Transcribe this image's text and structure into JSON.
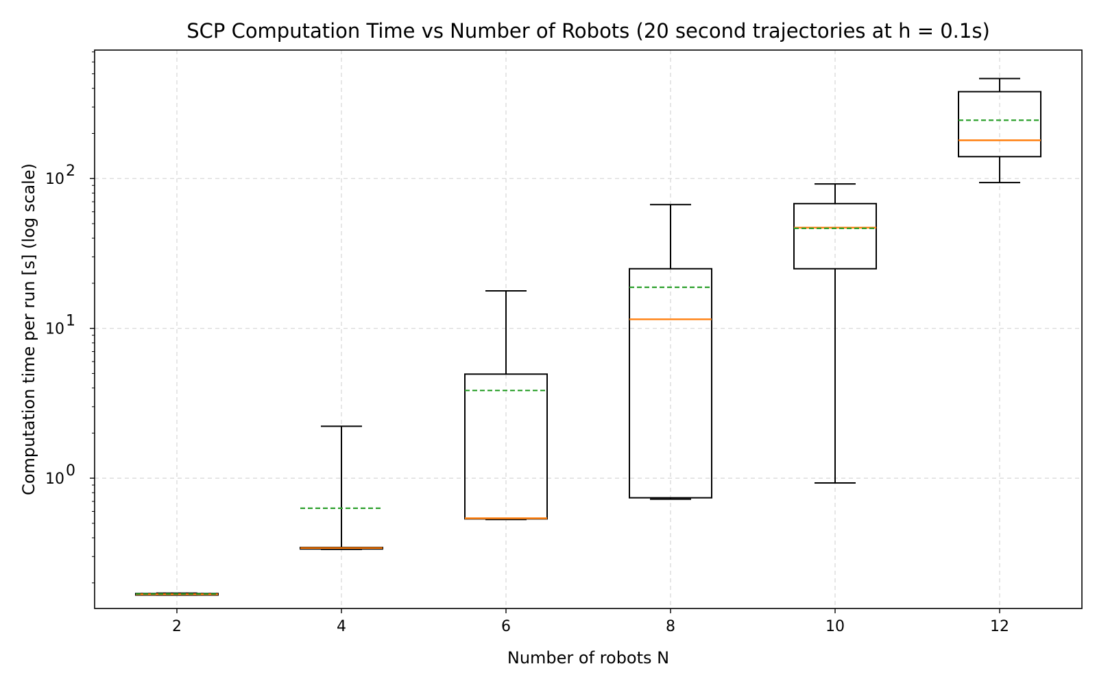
{
  "chart_data": {
    "type": "boxplot",
    "title": "SCP Computation Time vs Number of Robots (20 second trajectories at h = 0.1s)",
    "xlabel": "Number of robots N",
    "ylabel": "Computation time per run [s] (log scale)",
    "y_scale": "log",
    "ylim": [
      0.135,
      720
    ],
    "xlim": [
      1,
      13
    ],
    "x_ticks": [
      "2",
      "4",
      "6",
      "8",
      "10",
      "12"
    ],
    "y_ticks": [
      {
        "value": 1,
        "base": "10",
        "exp": "0"
      },
      {
        "value": 10,
        "base": "10",
        "exp": "1"
      },
      {
        "value": 100,
        "base": "10",
        "exp": "2"
      }
    ],
    "grid": true,
    "median_color": "#ff7f0e",
    "mean_color": "#2ca02c",
    "boxes": [
      {
        "x": 2,
        "whisker_low": 0.166,
        "q1": 0.166,
        "median": 0.168,
        "mean": 0.169,
        "q3": 0.17,
        "whisker_high": 0.171
      },
      {
        "x": 4,
        "whisker_low": 0.335,
        "q1": 0.337,
        "median": 0.342,
        "mean": 0.63,
        "q3": 0.345,
        "whisker_high": 2.22
      },
      {
        "x": 6,
        "whisker_low": 0.53,
        "q1": 0.535,
        "median": 0.54,
        "mean": 3.85,
        "q3": 4.95,
        "whisker_high": 17.8
      },
      {
        "x": 8,
        "whisker_low": 0.725,
        "q1": 0.74,
        "median": 11.5,
        "mean": 18.8,
        "q3": 25.0,
        "whisker_high": 67.0
      },
      {
        "x": 10,
        "whisker_low": 0.93,
        "q1": 25.0,
        "median": 47.0,
        "mean": 46.5,
        "q3": 68.0,
        "whisker_high": 92.0
      },
      {
        "x": 12,
        "whisker_low": 94.0,
        "q1": 140.0,
        "median": 180.0,
        "mean": 245.0,
        "q3": 380.0,
        "whisker_high": 465.0
      }
    ]
  }
}
